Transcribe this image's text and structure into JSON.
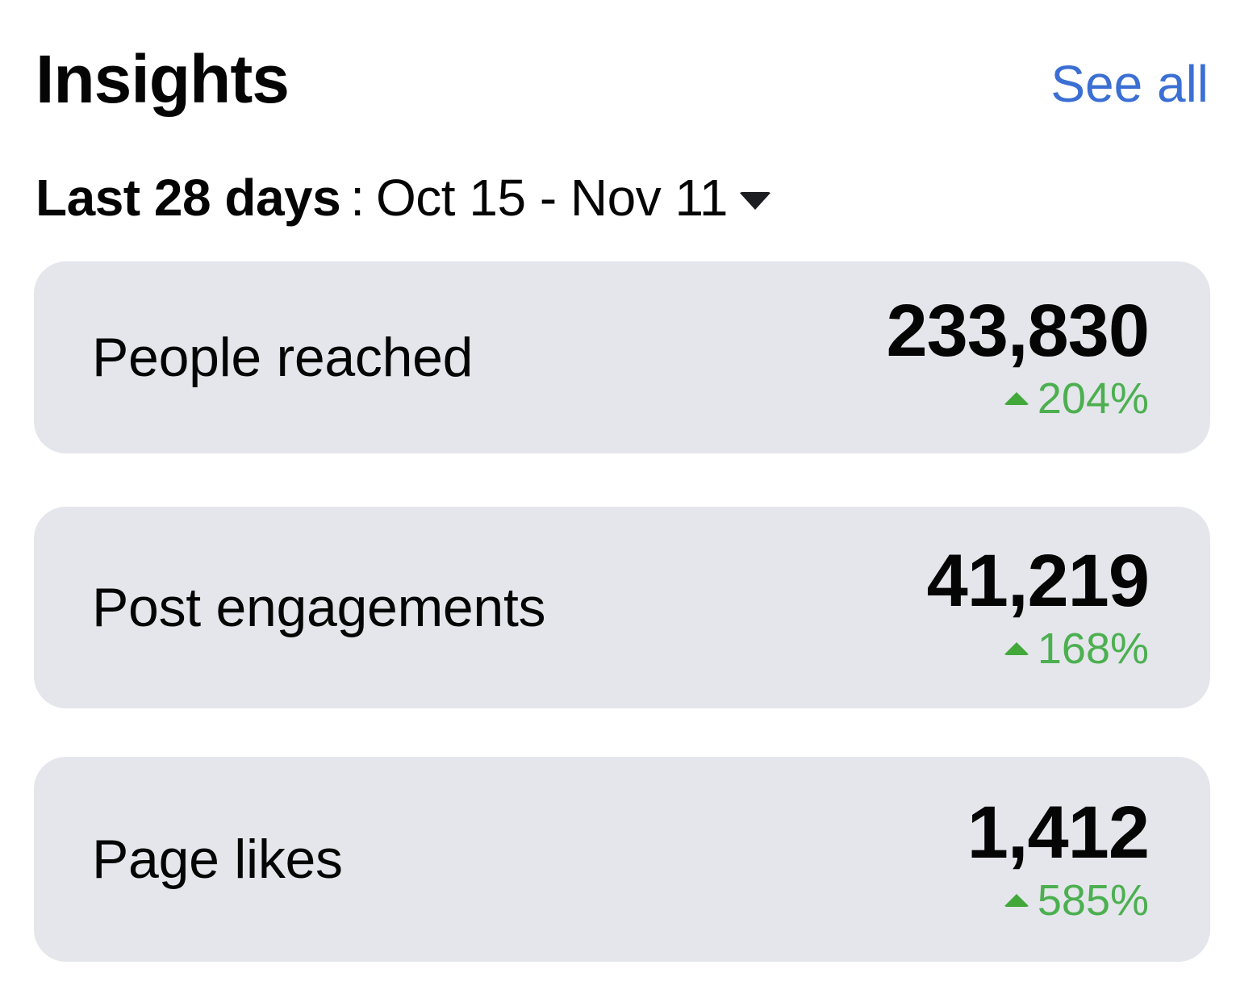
{
  "header": {
    "title": "Insights",
    "see_all_label": "See all",
    "link_color": "#3b6fd3"
  },
  "date_range": {
    "label": "Last 28 days",
    "separator": ":",
    "dates": "Oct 15 - Nov 11",
    "icon": "caret-down-icon"
  },
  "metrics": [
    {
      "label": "People reached",
      "value": "233,830",
      "change": "204%",
      "direction": "up",
      "icon": "triangle-up-icon"
    },
    {
      "label": "Post engagements",
      "value": "41,219",
      "change": "168%",
      "direction": "up",
      "icon": "triangle-up-icon"
    },
    {
      "label": "Page likes",
      "value": "1,412",
      "change": "585%",
      "direction": "up",
      "icon": "triangle-up-icon"
    }
  ],
  "colors": {
    "card_background": "#e4e6eb",
    "positive": "#4caf50",
    "text": "#050505"
  }
}
